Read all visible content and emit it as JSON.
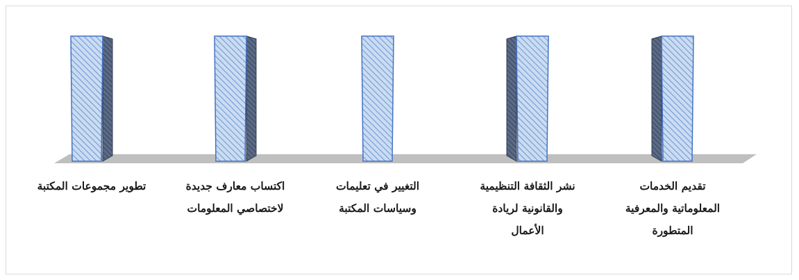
{
  "chart_data": {
    "type": "bar",
    "style": "3d-column",
    "categories": [
      "تطوير مجموعات المكتبة",
      "اكتساب معارف جديدة\nلاختصاصي المعلومات",
      "التغيير في تعليمات\nوسياسات المكتبة",
      "نشر الثقافة التنظيمية\nوالقانونية لريادة\nالأعمال",
      "تقديم الخدمات\nالمعلوماتية والمعرفية\nالمتطورة"
    ],
    "values": [
      1,
      1,
      1,
      1,
      1
    ],
    "ylim": [
      0,
      1
    ],
    "grid": false,
    "legend": "none",
    "colors": {
      "bar_fill": "#c9dcf2",
      "bar_stroke": "#4472c4",
      "hatch": "#6f93cf",
      "side_fill": "#59657c",
      "floor": "#bfbfbf"
    }
  }
}
